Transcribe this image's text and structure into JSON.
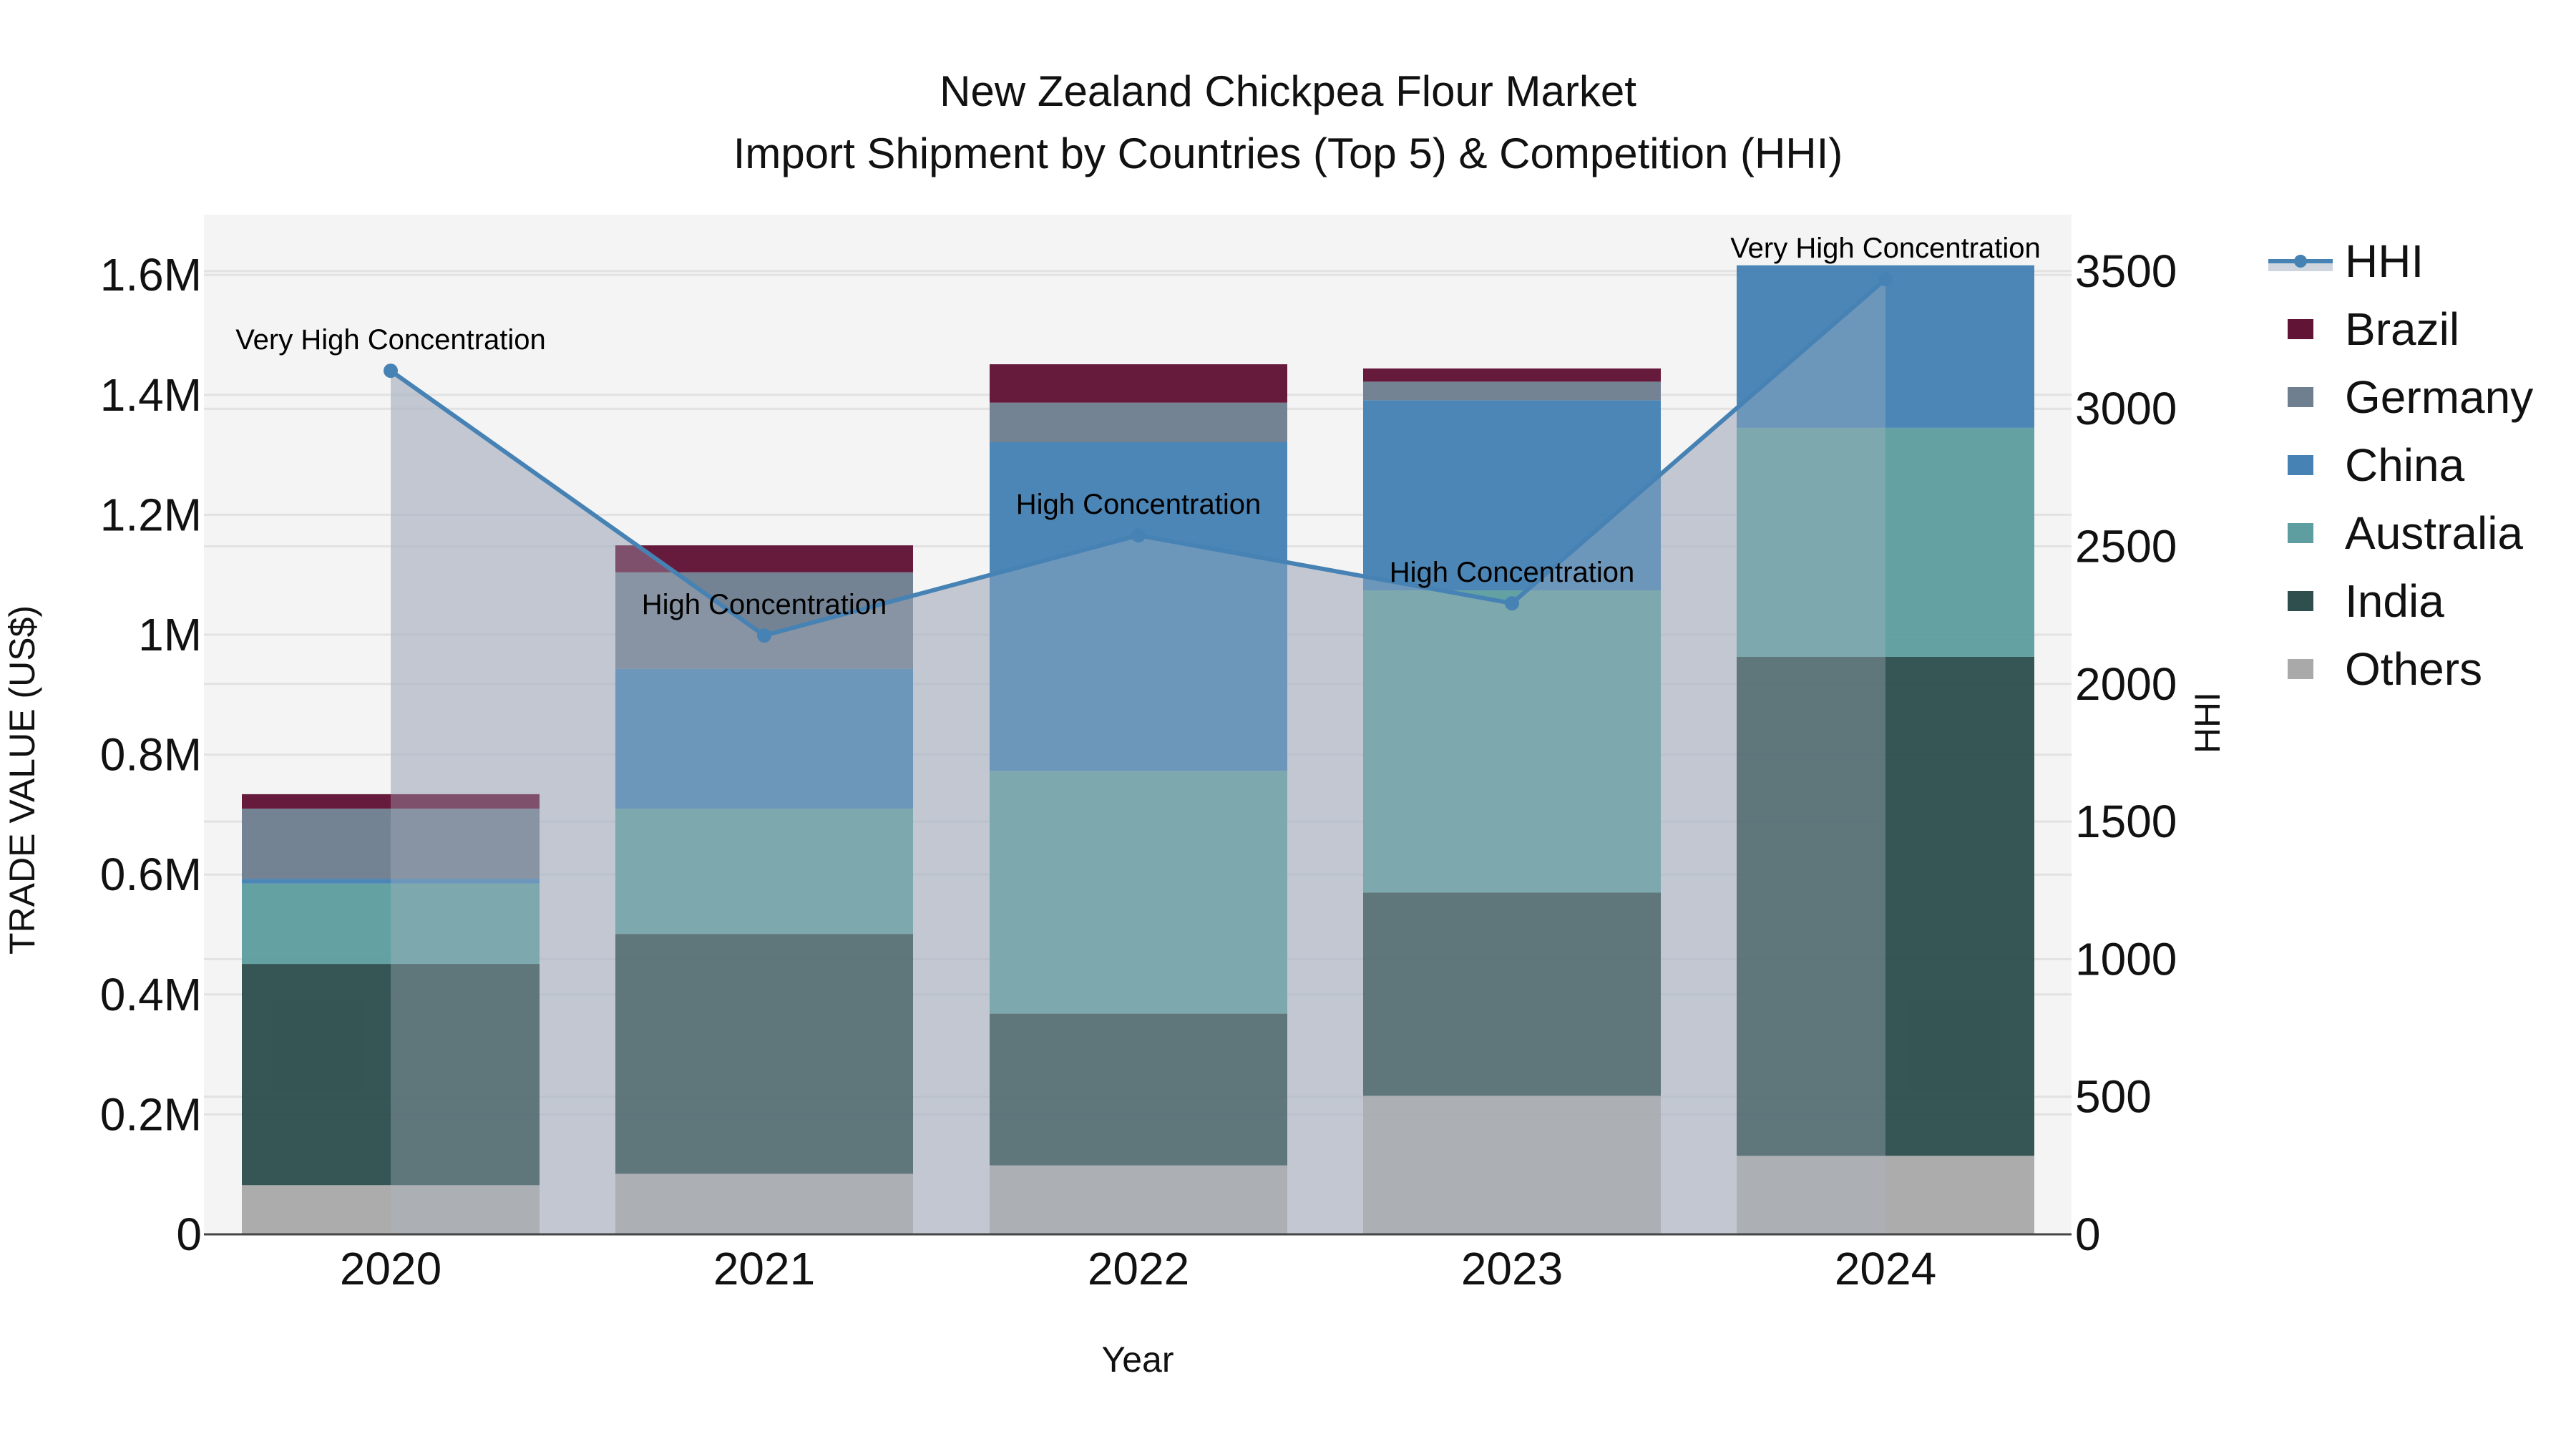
{
  "title": {
    "line1": "New Zealand Chickpea Flour Market",
    "line2": "Import Shipment by Countries (Top 5) & Competition (HHI)"
  },
  "axes": {
    "x_title": "Year",
    "y_left_title": "TRADE VALUE (US$)",
    "y_right_title": "HHI",
    "y_left_ticks": [
      "0",
      "0.2M",
      "0.4M",
      "0.6M",
      "0.8M",
      "1M",
      "1.2M",
      "1.4M",
      "1.6M"
    ],
    "y_right_ticks": [
      "0",
      "500",
      "1000",
      "1500",
      "2000",
      "2500",
      "3000",
      "3500"
    ]
  },
  "legend": [
    {
      "name": "HHI",
      "type": "line",
      "color": "#4682b4"
    },
    {
      "name": "Brazil",
      "type": "bar",
      "color": "#621436"
    },
    {
      "name": "Germany",
      "type": "bar",
      "color": "#6f7f8f"
    },
    {
      "name": "China",
      "type": "bar",
      "color": "#4682b4"
    },
    {
      "name": "Australia",
      "type": "bar",
      "color": "#5f9ea0"
    },
    {
      "name": "India",
      "type": "bar",
      "color": "#2f4f4f"
    },
    {
      "name": "Others",
      "type": "bar",
      "color": "#a9a9a9"
    }
  ],
  "annotations": [
    {
      "year": "2020",
      "text": "Very High Concentration"
    },
    {
      "year": "2021",
      "text": "High Concentration"
    },
    {
      "year": "2022",
      "text": "High Concentration"
    },
    {
      "year": "2023",
      "text": "High Concentration"
    },
    {
      "year": "2024",
      "text": "Very High Concentration"
    }
  ],
  "chart_data": {
    "type": "bar",
    "stacked": true,
    "title": "New Zealand Chickpea Flour Market — Import Shipment by Countries (Top 5) & Competition (HHI)",
    "xlabel": "Year",
    "ylabel": "TRADE VALUE (US$)",
    "y2label": "HHI",
    "ylim": [
      0,
      1.7
    ],
    "y2lim": [
      0,
      3700
    ],
    "categories": [
      "2020",
      "2021",
      "2022",
      "2023",
      "2024"
    ],
    "series": [
      {
        "name": "Others",
        "color": "#a9a9a9",
        "values": [
          0.082,
          0.101,
          0.115,
          0.231,
          0.131
        ]
      },
      {
        "name": "India",
        "color": "#2f4f4f",
        "values": [
          0.369,
          0.4,
          0.253,
          0.339,
          0.832
        ]
      },
      {
        "name": "Australia",
        "color": "#5f9ea0",
        "values": [
          0.134,
          0.209,
          0.405,
          0.504,
          0.382
        ]
      },
      {
        "name": "China",
        "color": "#4682b4",
        "values": [
          0.008,
          0.233,
          0.548,
          0.317,
          0.271
        ]
      },
      {
        "name": "Germany",
        "color": "#6f7f8f",
        "values": [
          0.117,
          0.161,
          0.066,
          0.031,
          0.0
        ]
      },
      {
        "name": "Brazil",
        "color": "#621436",
        "values": [
          0.024,
          0.045,
          0.064,
          0.022,
          0.0
        ]
      }
    ],
    "units": "million US$",
    "hhi": {
      "name": "HHI",
      "color": "#4682b4",
      "values": [
        3138,
        2176,
        2540,
        2293,
        3471
      ]
    },
    "legend_position": "right",
    "grid": true
  }
}
